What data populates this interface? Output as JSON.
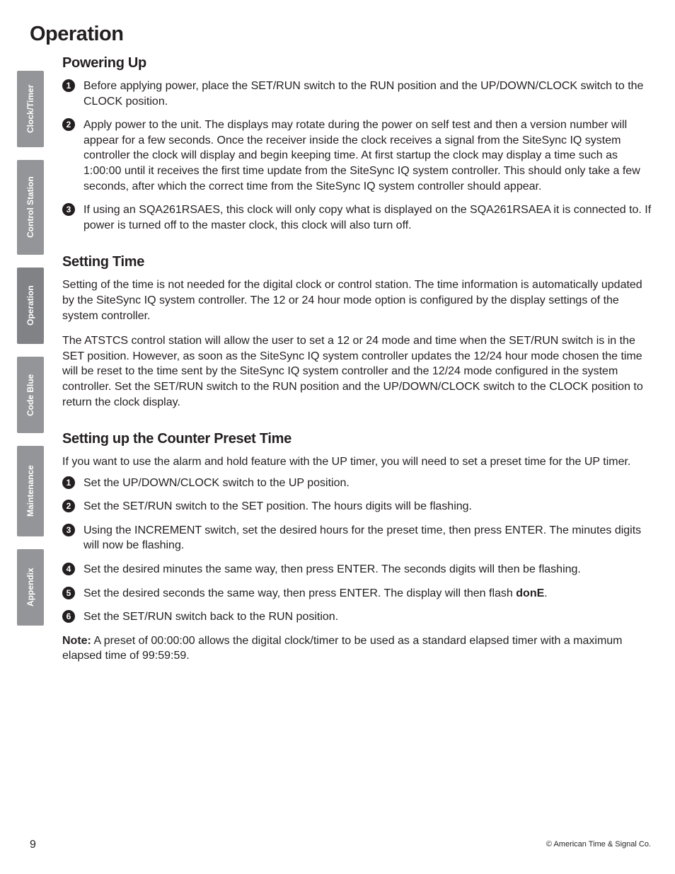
{
  "page": {
    "title": "Operation",
    "number": "9",
    "copyright": "© American Time & Signal Co."
  },
  "tabs": [
    {
      "label": "Clock/Timer",
      "class": "clock-timer",
      "active": false
    },
    {
      "label": "Control Station",
      "class": "control",
      "active": false
    },
    {
      "label": "Operation",
      "class": "operation",
      "active": true
    },
    {
      "label": "Code Blue",
      "class": "code-blue",
      "active": false
    },
    {
      "label": "Maintenance",
      "class": "maintenance",
      "active": false
    },
    {
      "label": "Appendix",
      "class": "appendix",
      "active": false
    }
  ],
  "sections": {
    "powering_up": {
      "heading": "Powering Up",
      "items": [
        "Before applying power, place the SET/RUN switch to the RUN position and the UP/DOWN/CLOCK switch to the CLOCK position.",
        "Apply power to the unit. The displays may rotate during the power on self test and then a version number will appear for a few seconds. Once the receiver inside the clock receives a signal from the SiteSync IQ system controller the clock will display and begin keeping time. At first startup the clock may display a time such as 1:00:00 until it receives the first time update from the SiteSync IQ system controller. This should only take a few seconds, after which the correct time from the SiteSync IQ system controller should appear.",
        "If using an SQA261RSAES, this clock will only copy what is displayed on the SQA261RSAEA it is connected to. If power is turned off to the master clock, this clock will also turn off."
      ]
    },
    "setting_time": {
      "heading": "Setting Time",
      "paragraphs": [
        "Setting of the time is not needed for the digital clock or control station. The time information is automatically updated by the SiteSync IQ system controller. The 12 or 24 hour mode option is configured by the display settings of the system controller.",
        "The ATSTCS control station will allow the user to set a 12 or 24 mode and time when the SET/RUN switch is in the SET position. However, as soon as the SiteSync IQ system controller updates the 12/24 hour mode chosen the time will be reset to the time sent by the SiteSync IQ system controller and the 12/24 mode configured in the system controller. Set the SET/RUN switch to the RUN position and the UP/DOWN/CLOCK switch to the CLOCK position to return the clock display."
      ]
    },
    "counter_preset": {
      "heading": "Setting up the Counter Preset Time",
      "intro": "If you want to use the alarm and hold feature with the UP timer, you will need to set a preset time for the UP timer.",
      "items": [
        "Set the UP/DOWN/CLOCK switch to the UP position.",
        "Set the SET/RUN switch to the SET position. The hours digits will be flashing.",
        "Using the INCREMENT switch, set the desired hours for the preset time, then press ENTER. The minutes digits will now be flashing.",
        "Set the desired minutes the same way, then press ENTER. The seconds digits will then be flashing."
      ],
      "item5_pre": "Set the desired seconds the same way, then press ENTER. The display will then flash ",
      "item5_bold": "donE",
      "item5_post": ".",
      "item6": "Set the SET/RUN switch back to the RUN position.",
      "note_label": "Note:",
      "note_text": " A preset of 00:00:00 allows the digital clock/timer to be used as a standard elapsed timer with a maximum elapsed time of 99:59:59."
    }
  }
}
